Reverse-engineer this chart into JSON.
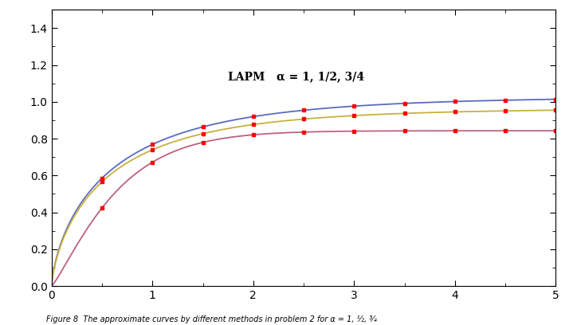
{
  "title_annotation": "LAPM   α = 1, 1/2, 3/4",
  "xlim": [
    0,
    5
  ],
  "ylim": [
    0.0,
    1.5
  ],
  "yticks": [
    0.0,
    0.2,
    0.4,
    0.6,
    0.8,
    1.0,
    1.2,
    1.4
  ],
  "xticks": [
    0,
    1,
    2,
    3,
    4,
    5
  ],
  "curve_alpha1_color": "#5b6abf",
  "curve_alpha34_color": "#c8b040",
  "curve_alpha12_color": "#c06080",
  "dot_color": "red",
  "background_color": "#ffffff",
  "figsize": [
    7.19,
    4.08
  ],
  "dpi": 100
}
